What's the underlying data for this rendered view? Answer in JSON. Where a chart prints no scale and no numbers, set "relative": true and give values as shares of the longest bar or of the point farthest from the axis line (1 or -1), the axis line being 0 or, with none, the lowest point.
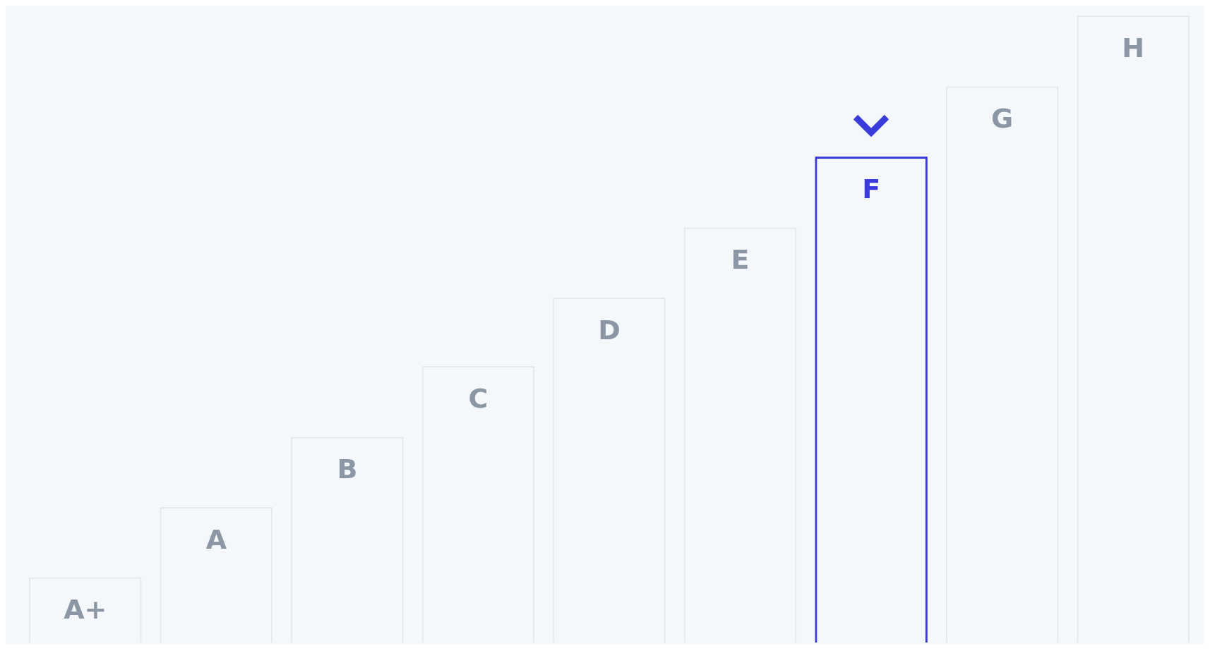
{
  "chart_data": {
    "type": "bar",
    "relative": true,
    "categories": [
      "A+",
      "A",
      "B",
      "C",
      "D",
      "E",
      "F",
      "G",
      "H"
    ],
    "values": [
      0.104,
      0.216,
      0.328,
      0.441,
      0.55,
      0.662,
      0.775,
      0.887,
      1
    ],
    "colors": [
      "#e4e8ed",
      "#e4e8ed",
      "#e4e8ed",
      "#e4e8ed",
      "#e4e8ed",
      "#e4e8ed",
      "#3b3bdb",
      "#e4e8ed",
      "#e4e8ed"
    ],
    "legend": false
  }
}
